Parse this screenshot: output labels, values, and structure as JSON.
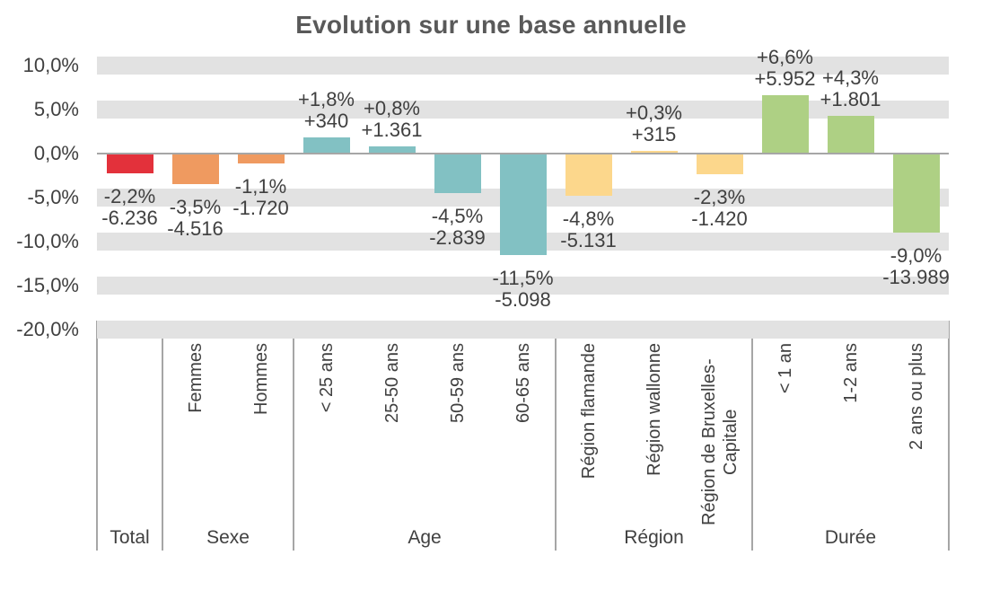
{
  "title": "Evolution sur une base annuelle",
  "colors": {
    "band": "#e2e2e2",
    "zero_line": "#a6a6a6",
    "separator": "#a6a6a6",
    "text": "#404040",
    "title_text": "#595959",
    "series": {
      "total": "#e3313b",
      "sexe": "#ef9a60",
      "age": "#82c1c3",
      "region": "#fcd78c",
      "duree": "#aed084"
    }
  },
  "chart_data": {
    "type": "bar",
    "title": "Evolution sur une base annuelle",
    "unit": "%",
    "y_axis": {
      "ylim": [
        -20,
        10
      ],
      "tick_values": [
        10,
        5,
        0,
        -5,
        -10,
        -15,
        -20
      ],
      "tick_labels": [
        "10,0%",
        "5,0%",
        "0,0%",
        "-5,0%",
        "-10,0%",
        "-15,0%",
        "-20,0%"
      ],
      "gridline_bands": [
        10,
        5,
        -5,
        -10,
        -15,
        -20
      ]
    },
    "groups": [
      {
        "label": "Total",
        "color": "#e3313b",
        "bars": [
          {
            "category": "",
            "pct": -2.2,
            "abs": -6236,
            "pct_label": "-2,2%",
            "abs_label": "-6.236"
          }
        ]
      },
      {
        "label": "Sexe",
        "color": "#ef9a60",
        "bars": [
          {
            "category": "Femmes",
            "pct": -3.5,
            "abs": -4516,
            "pct_label": "-3,5%",
            "abs_label": "-4.516"
          },
          {
            "category": "Hommes",
            "pct": -1.1,
            "abs": -1720,
            "pct_label": "-1,1%",
            "abs_label": "-1.720"
          }
        ]
      },
      {
        "label": "Age",
        "color": "#82c1c3",
        "bars": [
          {
            "category": "< 25 ans",
            "pct": 1.8,
            "abs": 340,
            "pct_label": "+1,8%",
            "abs_label": "+340"
          },
          {
            "category": "25-50 ans",
            "pct": 0.8,
            "abs": 1361,
            "pct_label": "+0,8%",
            "abs_label": "+1.361"
          },
          {
            "category": "50-59 ans",
            "pct": -4.5,
            "abs": -2839,
            "pct_label": "-4,5%",
            "abs_label": "-2.839"
          },
          {
            "category": "60-65 ans",
            "pct": -11.5,
            "abs": -5098,
            "pct_label": "-11,5%",
            "abs_label": "-5.098"
          }
        ]
      },
      {
        "label": "Région",
        "color": "#fcd78c",
        "bars": [
          {
            "category": "Région flamande",
            "pct": -4.8,
            "abs": -5131,
            "pct_label": "-4,8%",
            "abs_label": "-5.131"
          },
          {
            "category": "Région wallonne",
            "pct": 0.3,
            "abs": 315,
            "pct_label": "+0,3%",
            "abs_label": "+315"
          },
          {
            "category": "Région de Bruxelles-Capitale",
            "pct": -2.3,
            "abs": -1420,
            "pct_label": "-2,3%",
            "abs_label": "-1.420"
          }
        ]
      },
      {
        "label": "Durée",
        "color": "#aed084",
        "bars": [
          {
            "category": "< 1 an",
            "pct": 6.6,
            "abs": 5952,
            "pct_label": "+6,6%",
            "abs_label": "+5.952"
          },
          {
            "category": "1-2 ans",
            "pct": 4.3,
            "abs": 1801,
            "pct_label": "+4,3%",
            "abs_label": "+1.801"
          },
          {
            "category": "2 ans ou plus",
            "pct": -9.0,
            "abs": -13989,
            "pct_label": "-9,0%",
            "abs_label": "-13.989"
          }
        ]
      }
    ]
  }
}
